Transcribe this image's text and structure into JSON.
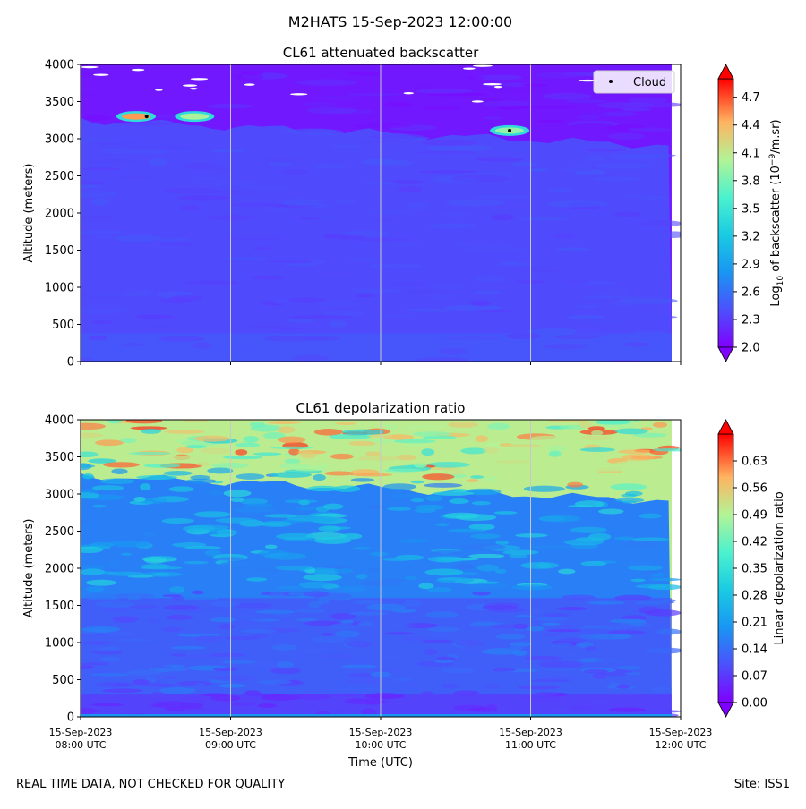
{
  "figure": {
    "title": "M2HATS 15-Sep-2023 12:00:00",
    "footer_left": "REAL TIME DATA, NOT CHECKED FOR QUALITY",
    "footer_right": "Site: ISS1",
    "xlabel": "Time (UTC)"
  },
  "chart_data": [
    {
      "type": "heatmap",
      "title": "CL61 attenuated backscatter",
      "ylabel": "Altitude (meters)",
      "ylim": [
        0,
        4000
      ],
      "yticks": [
        "0",
        "500",
        "1000",
        "1500",
        "2000",
        "2500",
        "3000",
        "3500",
        "4000"
      ],
      "xlim_hours_utc": [
        8.0,
        12.0
      ],
      "xticks": [
        {
          "date": "15-Sep-2023",
          "time": "08:00 UTC"
        },
        {
          "date": "15-Sep-2023",
          "time": "09:00 UTC"
        },
        {
          "date": "15-Sep-2023",
          "time": "10:00 UTC"
        },
        {
          "date": "15-Sep-2023",
          "time": "11:00 UTC"
        },
        {
          "date": "15-Sep-2023",
          "time": "12:00 UTC"
        }
      ],
      "show_xtick_labels": false,
      "colorbar": {
        "label": "Log10 of backscatter (10^-9/m.sr)",
        "label_base": "Log",
        "label_sub": "10",
        "label_mid": " of backscatter (10",
        "label_sup": "−9",
        "label_end": "/m.sr)",
        "range": [
          2.0,
          4.9
        ],
        "ticks": [
          "2.0",
          "2.3",
          "2.6",
          "2.9",
          "3.2",
          "3.5",
          "3.8",
          "4.1",
          "4.4",
          "4.7"
        ]
      },
      "legend": {
        "label": "Cloud",
        "placement": "top-right"
      },
      "field": {
        "base_value": 2.38,
        "surface_value": 2.5,
        "boundary_altitude_start": 3250,
        "boundary_altitude_end": 2900,
        "above_boundary_value": 2.12
      },
      "cloud_points": [
        {
          "time": 8.44,
          "altitude": 3300
        },
        {
          "time": 10.86,
          "altitude": 3110
        }
      ],
      "bright_layers": [
        {
          "time": 8.37,
          "altitude": 3300,
          "value": 4.5
        },
        {
          "time": 8.76,
          "altitude": 3300,
          "value": 4.0
        },
        {
          "time": 10.86,
          "altitude": 3110,
          "value": 3.9
        }
      ]
    },
    {
      "type": "heatmap",
      "title": "CL61 depolarization ratio",
      "ylabel": "Altitude (meters)",
      "ylim": [
        0,
        4000
      ],
      "yticks": [
        "0",
        "500",
        "1000",
        "1500",
        "2000",
        "2500",
        "3000",
        "3500",
        "4000"
      ],
      "xlim_hours_utc": [
        8.0,
        12.0
      ],
      "xticks": [
        {
          "date": "15-Sep-2023",
          "time": "08:00 UTC"
        },
        {
          "date": "15-Sep-2023",
          "time": "09:00 UTC"
        },
        {
          "date": "15-Sep-2023",
          "time": "10:00 UTC"
        },
        {
          "date": "15-Sep-2023",
          "time": "11:00 UTC"
        },
        {
          "date": "15-Sep-2023",
          "time": "12:00 UTC"
        }
      ],
      "show_xtick_labels": true,
      "colorbar": {
        "label": "Linear depolarization ratio",
        "range": [
          0.0,
          0.7
        ],
        "ticks": [
          "0.00",
          "0.07",
          "0.14",
          "0.21",
          "0.28",
          "0.35",
          "0.42",
          "0.49",
          "0.56",
          "0.63"
        ]
      },
      "field": {
        "low_value": 0.09,
        "high_value": 0.24,
        "top_value": 0.5,
        "boundary_altitude_start": 3250,
        "boundary_altitude_end": 2900
      }
    }
  ],
  "colors": {
    "frame": "#000000",
    "grid": "#c8c8c8",
    "cloud_marker": "#000000",
    "legend_border": "#cccccc"
  }
}
